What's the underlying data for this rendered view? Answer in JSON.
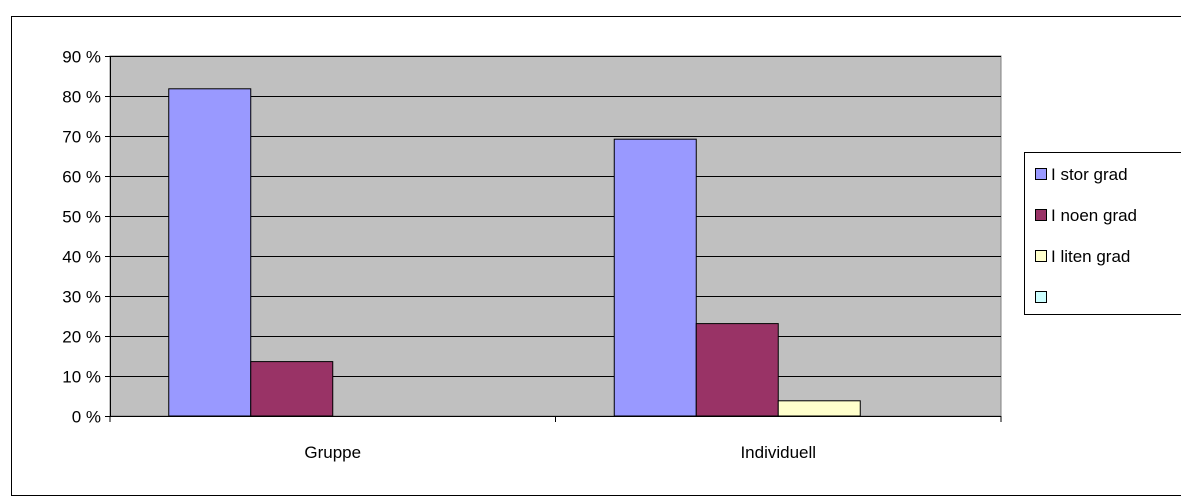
{
  "chart_data": {
    "type": "bar",
    "title": "",
    "xlabel": "",
    "ylabel": "",
    "categories": [
      "Gruppe",
      "Individuell"
    ],
    "ylim": [
      0,
      90
    ],
    "yticks": [
      0,
      10,
      20,
      30,
      40,
      50,
      60,
      70,
      80,
      90
    ],
    "ytick_labels": [
      "0 %",
      "10 %",
      "20 %",
      "30 %",
      "40 %",
      "50 %",
      "60 %",
      "70 %",
      "80 %",
      "90 %"
    ],
    "grid": true,
    "legend_position": "right",
    "plot_background": "#c0c0c0",
    "series": [
      {
        "name": "I stor grad",
        "color": "#9999ff",
        "values": [
          81.8,
          69.2
        ]
      },
      {
        "name": "I noen grad",
        "color": "#993366",
        "values": [
          13.6,
          23.1
        ]
      },
      {
        "name": "I liten grad",
        "color": "#ffffcc",
        "values": [
          0,
          3.8
        ]
      },
      {
        "name": "",
        "color": "#ccffff",
        "values": [
          0,
          0
        ]
      }
    ]
  }
}
